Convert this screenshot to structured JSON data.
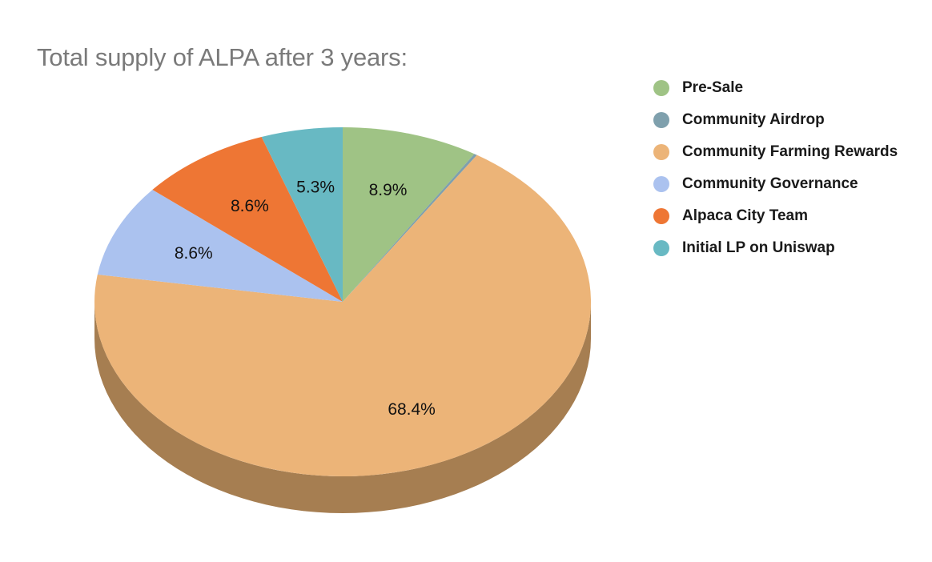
{
  "chart_data": {
    "type": "pie",
    "title": "Total supply of ALPA after 3 years:",
    "legend_position": "right",
    "slices": [
      {
        "name": "Pre-Sale",
        "value": 8.9,
        "label": "8.9%",
        "color": "#9fc385",
        "side_color": "#6f8a5c"
      },
      {
        "name": "Community Airdrop",
        "value": 0.2,
        "label": "",
        "color": "#7fa0ad",
        "side_color": "#5a737d"
      },
      {
        "name": "Community Farming Rewards",
        "value": 68.4,
        "label": "68.4%",
        "color": "#ecb478",
        "side_color": "#a67e51"
      },
      {
        "name": "Community Governance",
        "value": 8.6,
        "label": "8.6%",
        "color": "#abc2ef",
        "side_color": "#7b8db0"
      },
      {
        "name": "Alpaca City Team",
        "value": 8.6,
        "label": "8.6%",
        "color": "#ee7634",
        "side_color": "#a85226"
      },
      {
        "name": "Initial LP on Uniswap",
        "value": 5.3,
        "label": "5.3%",
        "color": "#68b9c3",
        "side_color": "#4a8a92"
      }
    ]
  }
}
